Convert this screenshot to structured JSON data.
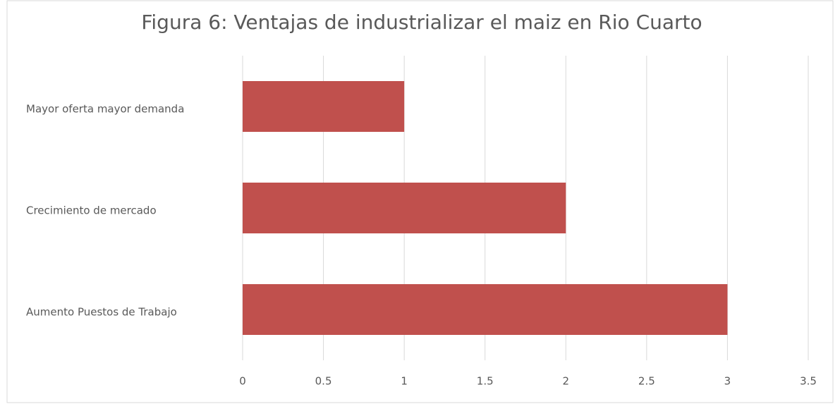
{
  "chart_data": {
    "type": "bar",
    "orientation": "horizontal",
    "title": "Figura 6: Ventajas de industrializar el maiz en Rio Cuarto",
    "categories": [
      "Mayor oferta mayor demanda",
      "Crecimiento de mercado",
      "Aumento Puestos de Trabajo"
    ],
    "values": [
      1,
      2,
      3
    ],
    "color": "#c0504d",
    "xlim": [
      0,
      3.5
    ],
    "xticks": [
      0,
      0.5,
      1,
      1.5,
      2,
      2.5,
      3,
      3.5
    ],
    "grid": true
  }
}
